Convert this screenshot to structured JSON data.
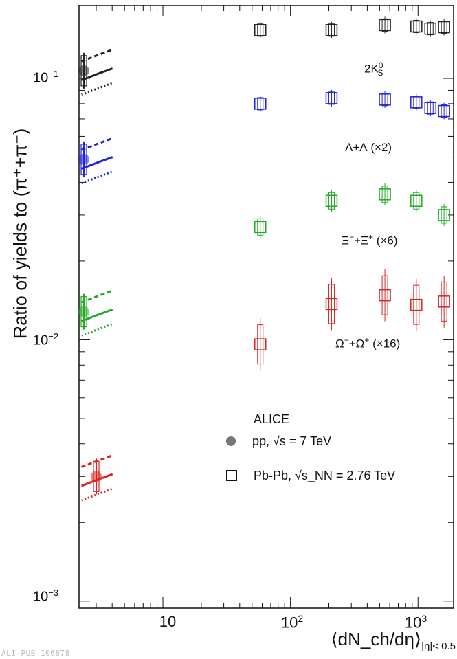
{
  "chart_data": {
    "type": "scatter",
    "title": "",
    "ylabel": "Ratio of yields to (π⁺+π⁻)",
    "xlabel": "⟨dN_ch/dη⟩",
    "xlabel_subscript": "|η|< 0.5",
    "x_scale": "log",
    "y_scale": "log",
    "xlim": [
      2.2,
      1900
    ],
    "ylim": [
      0.00094,
      0.19
    ],
    "x_tick_labels": [
      "10",
      "10²",
      "10³"
    ],
    "y_tick_labels": [
      "10⁻³",
      "10⁻²",
      "10⁻¹"
    ],
    "legend": {
      "title": "ALICE",
      "entries": [
        {
          "marker": "filled-circle",
          "label": "pp, √s = 7 TeV"
        },
        {
          "marker": "open-square",
          "label": "Pb-Pb, √s_NN = 2.76 TeV"
        }
      ]
    },
    "series": [
      {
        "name": "2K⁰S",
        "color": "#222222",
        "pbpb": {
          "x": [
            58,
            210,
            550,
            970,
            1250,
            1600
          ],
          "y": [
            0.153,
            0.153,
            0.16,
            0.158,
            0.155,
            0.157
          ]
        },
        "pp": {
          "x": [
            2.4
          ],
          "y": [
            0.107
          ]
        }
      },
      {
        "name": "Λ+Λ̄ (×2)",
        "color": "#2222dd",
        "pbpb": {
          "x": [
            58,
            210,
            550,
            970,
            1250,
            1600
          ],
          "y": [
            0.08,
            0.084,
            0.083,
            0.081,
            0.077,
            0.075
          ]
        },
        "pp": {
          "x": [
            2.4
          ],
          "y": [
            0.049
          ]
        }
      },
      {
        "name": "Ξ⁻+Ξ⁺ (×6)",
        "color": "#22aa22",
        "pbpb": {
          "x": [
            58,
            210,
            550,
            970,
            1600
          ],
          "y": [
            0.027,
            0.034,
            0.036,
            0.034,
            0.03
          ]
        },
        "pp": {
          "x": [
            2.4
          ],
          "y": [
            0.0128
          ]
        }
      },
      {
        "name": "Ω⁻+Ω⁺ (×16)",
        "color": "#dd2222",
        "pbpb": {
          "x": [
            58,
            210,
            550,
            970,
            1600
          ],
          "y": [
            0.0096,
            0.0137,
            0.0148,
            0.0136,
            0.014
          ]
        },
        "pp": {
          "x": [
            3.0
          ],
          "y": [
            0.003
          ]
        }
      }
    ],
    "annotations": {
      "k0s": "2K",
      "k0s_sup": "0",
      "k0s_sub": "S",
      "lambda": "Λ+Λ̄ (×2)",
      "xi_a": "Ξ",
      "xi_a_sup": "−",
      "xi_b": "+Ξ",
      "xi_b_sup": "+",
      "xi_c": " (×6)",
      "omega_a": "Ω",
      "omega_a_sup": "−",
      "omega_b": "+Ω",
      "omega_b_sup": "+",
      "omega_c": " (×16)"
    },
    "watermark": "ALI-PUB-106878"
  }
}
